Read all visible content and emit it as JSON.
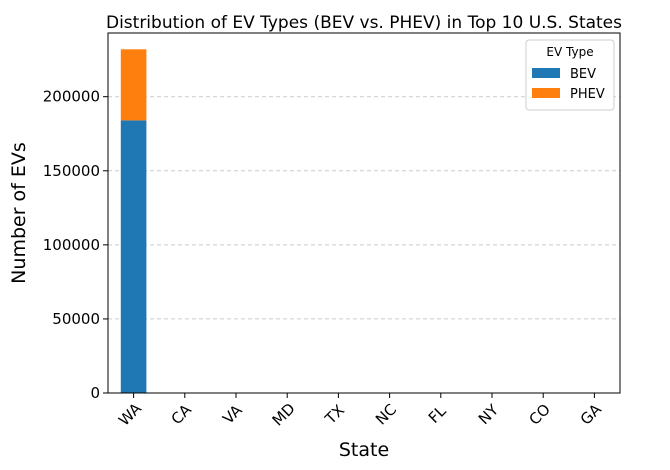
{
  "chart_data": {
    "type": "bar",
    "stacked": true,
    "title": "Distribution of EV Types (BEV vs. PHEV) in Top 10 U.S. States",
    "xlabel": "State",
    "ylabel": "Number of EVs",
    "categories": [
      "WA",
      "CA",
      "VA",
      "MD",
      "TX",
      "NC",
      "FL",
      "NY",
      "CO",
      "GA"
    ],
    "series": [
      {
        "name": "BEV",
        "color": "#1f77b4",
        "values": [
          184000,
          0,
          0,
          0,
          0,
          0,
          0,
          0,
          0,
          0
        ]
      },
      {
        "name": "PHEV",
        "color": "#ff7f0e",
        "values": [
          48000,
          0,
          0,
          0,
          0,
          0,
          0,
          0,
          0,
          0
        ]
      }
    ],
    "ylim": [
      0,
      243000
    ],
    "yticks": [
      0,
      50000,
      100000,
      150000,
      200000
    ],
    "grid": "y-dashed",
    "legend_title": "EV Type",
    "legend_position": "top-right"
  }
}
